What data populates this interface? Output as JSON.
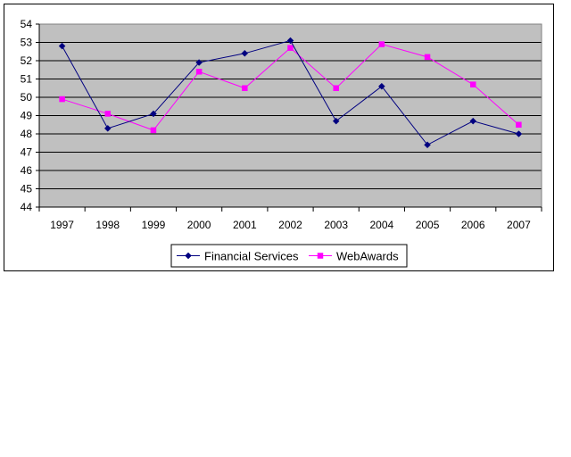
{
  "chart_data": {
    "type": "line",
    "title": "",
    "xlabel": "",
    "ylabel": "",
    "categories": [
      "1997",
      "1998",
      "1999",
      "2000",
      "2001",
      "2002",
      "2003",
      "2004",
      "2005",
      "2006",
      "2007"
    ],
    "ylim": [
      44,
      54
    ],
    "yticks": [
      44,
      45,
      46,
      47,
      48,
      49,
      50,
      51,
      52,
      53,
      54
    ],
    "grid": true,
    "legend_position": "bottom",
    "plot_background": "#c0c0c0",
    "series": [
      {
        "name": "Financial Services",
        "color": "#000080",
        "marker": "diamond",
        "values": [
          52.8,
          48.3,
          49.1,
          51.9,
          52.4,
          53.1,
          48.7,
          50.6,
          47.4,
          48.7,
          48.0
        ]
      },
      {
        "name": "WebAwards",
        "color": "#ff00ff",
        "marker": "square",
        "values": [
          49.9,
          49.1,
          48.2,
          51.4,
          50.5,
          52.7,
          50.5,
          52.9,
          52.2,
          50.7,
          48.5
        ]
      }
    ]
  }
}
